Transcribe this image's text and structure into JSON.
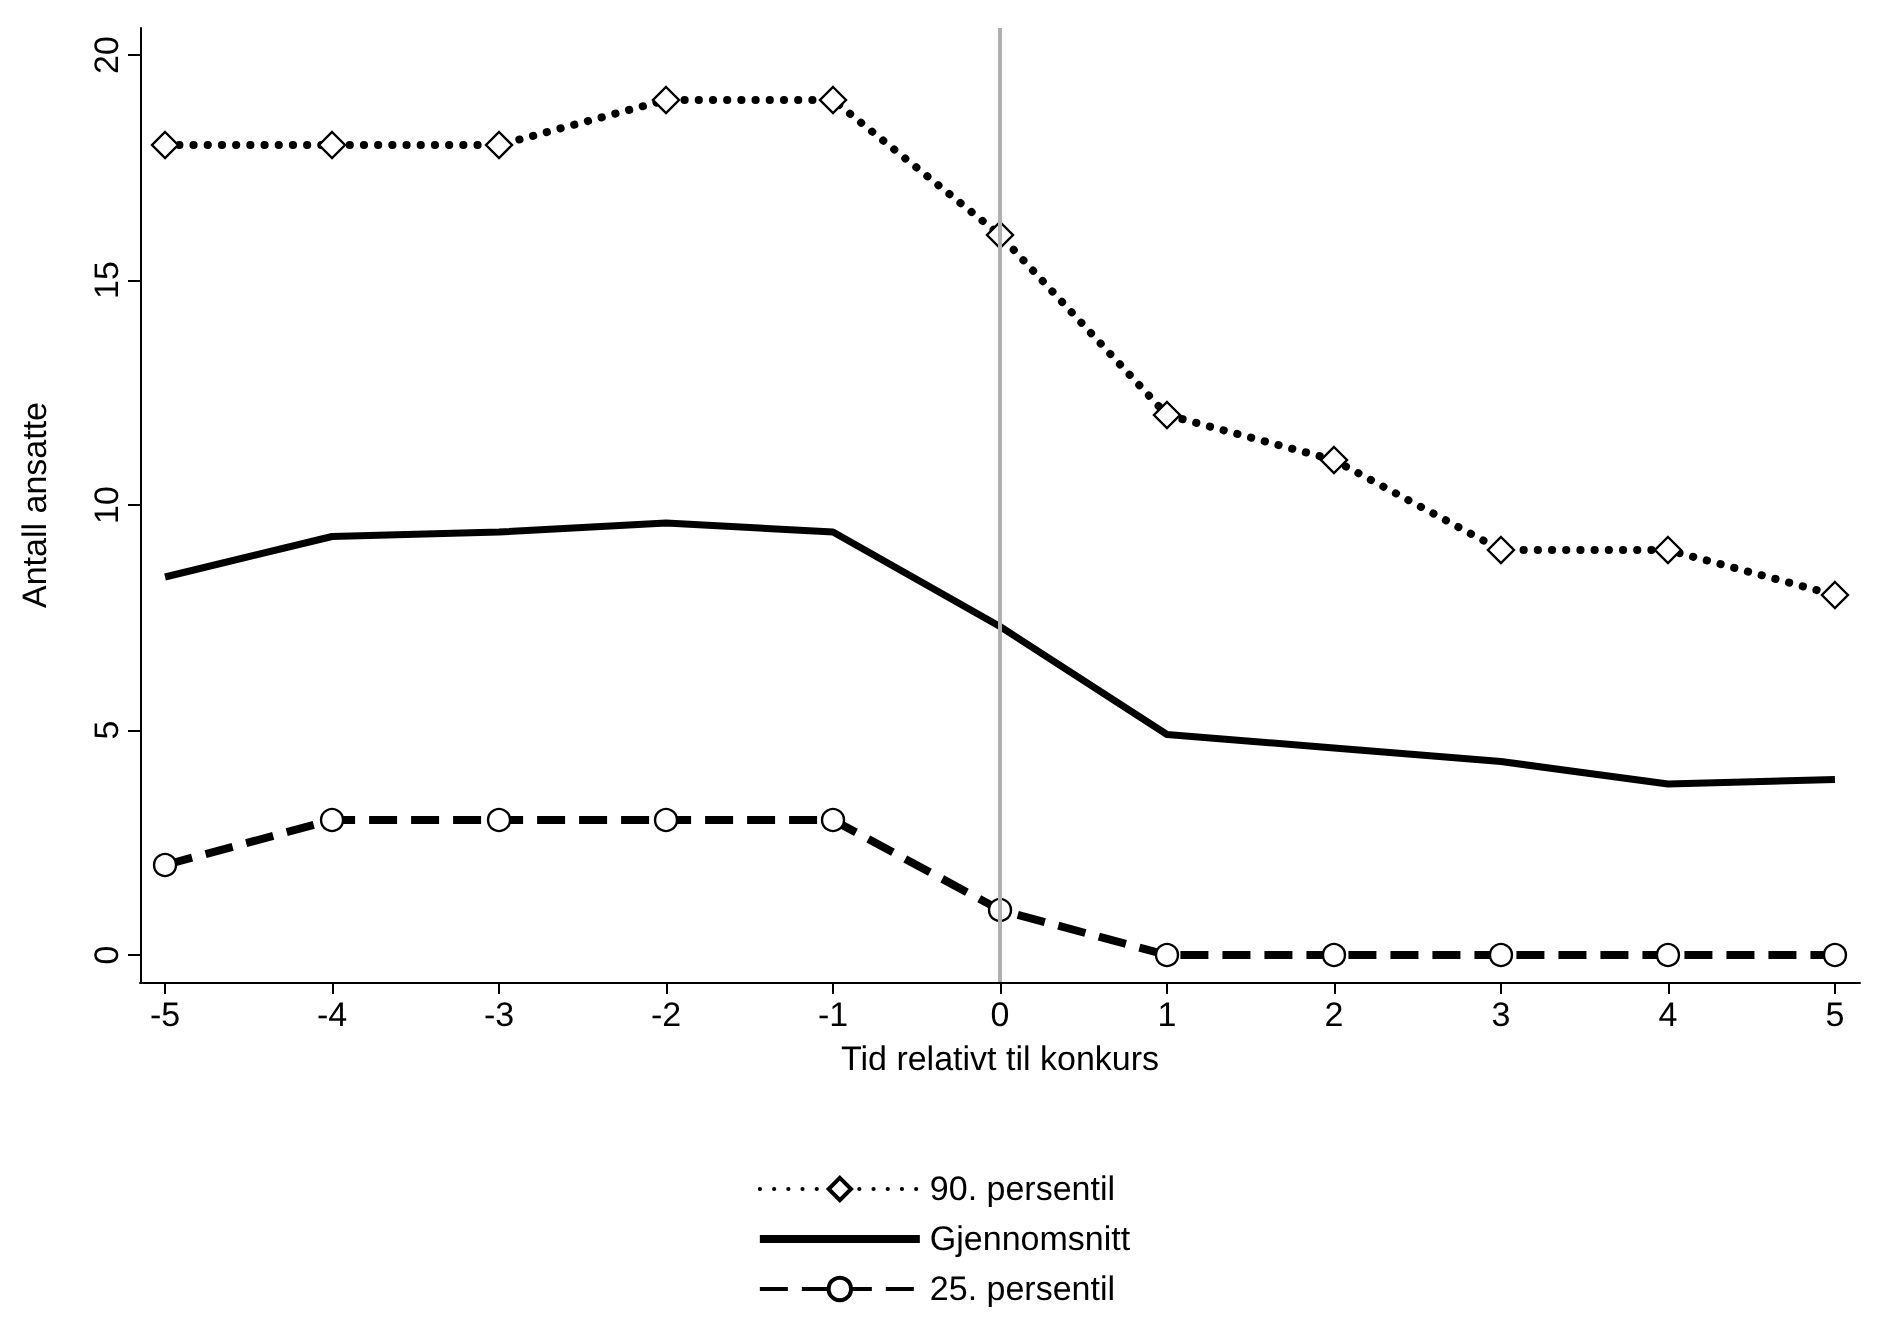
{
  "chart_data": {
    "type": "line",
    "xlabel": "Tid relativt til konkurs",
    "ylabel": "Antall ansatte",
    "x": [
      -5,
      -4,
      -3,
      -2,
      -1,
      0,
      1,
      2,
      3,
      4,
      5
    ],
    "series": [
      {
        "name": "90. persentil",
        "color": "#000000",
        "marker": "diamond",
        "line_style": "dotted",
        "values": [
          18,
          18,
          18,
          19,
          19,
          16,
          12,
          11,
          9,
          9,
          8
        ]
      },
      {
        "name": "Gjennomsnitt",
        "color": "#000000",
        "marker": "none",
        "line_style": "solid",
        "values": [
          8.4,
          9.3,
          9.4,
          9.6,
          9.4,
          7.3,
          4.9,
          4.6,
          4.3,
          3.8,
          3.9
        ]
      },
      {
        "name": "25. persentil",
        "color": "#000000",
        "marker": "circle",
        "line_style": "dashed",
        "values": [
          2,
          3,
          3,
          3,
          3,
          1,
          0,
          0,
          0,
          0,
          0
        ]
      }
    ],
    "xlim": [
      -5.15,
      5.15
    ],
    "xticks": [
      -5,
      -4,
      -3,
      -2,
      -1,
      0,
      1,
      2,
      3,
      4,
      5
    ],
    "ylim": [
      -0.6,
      20.6
    ],
    "yticks": [
      0,
      5,
      10,
      15,
      20
    ],
    "ref_lines": [
      {
        "axis": "x",
        "value": 0,
        "color": "#b0b0b0"
      }
    ],
    "grid": false,
    "legend": "bottom"
  }
}
